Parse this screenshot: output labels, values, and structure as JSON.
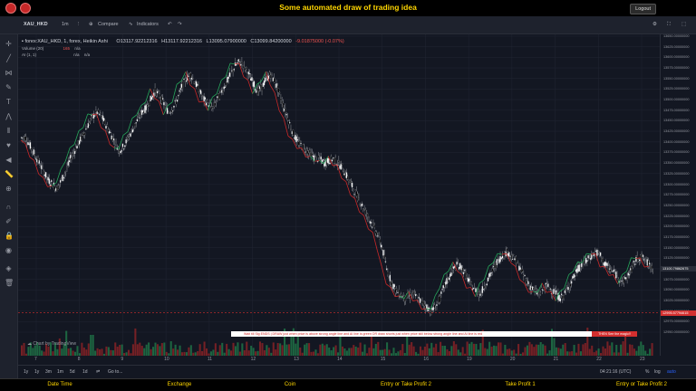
{
  "topbar": {
    "title": "Some automated draw of trading idea",
    "logout": "Logout"
  },
  "toolbar": {
    "symbol": "XAU_HKD",
    "interval": "1m",
    "compare": "Compare",
    "indicators": "Indicators"
  },
  "legend": {
    "main": "forex:XAU_HKD, 1, forex, Heikin Ashi",
    "open": "O13117.92212316",
    "high": "H13117.92212316",
    "low": "L13095.07900000",
    "close": "C13099.84200000",
    "change": "-9.01875000 (-0.07%)",
    "volume_label": "Volume (20)",
    "volume_val": "165",
    "volume_na": "n/a",
    "ai_label": "AI (1, 1)",
    "ai_na1": "n/a",
    "ai_na2": "n/a"
  },
  "banner": {
    "text": "Wait till Sig ENDS  |   DRAW just when  price is above strong angle line and AI line is green        OR      draw shorts just when price still below strong angle line and AI line is red",
    "cta": "THEN See the magic!!"
  },
  "watermark": "Chart by TradingView",
  "price_axis": {
    "ticks": [
      "13650.00000000",
      "13625.00000000",
      "13600.00000000",
      "13575.00000000",
      "13550.00000000",
      "13525.00000000",
      "13500.00000000",
      "13475.00000000",
      "13450.00000000",
      "13425.00000000",
      "13400.00000000",
      "13375.00000000",
      "13350.00000000",
      "13325.00000000",
      "13300.00000000",
      "13275.00000000",
      "13250.00000000",
      "13225.00000000",
      "13200.00000000",
      "13175.00000000",
      "13150.00000000",
      "13125.00000000",
      "13100.00000000",
      "13075.00000000",
      "13050.00000000",
      "13025.00000000",
      "13000.00000000",
      "12975.00000000",
      "12950.00000000"
    ],
    "current": "13100.79862675",
    "marker": "12995.57794615"
  },
  "time_axis": {
    "labels": [
      "7",
      "8",
      "9",
      "10",
      "11",
      "12",
      "13",
      "14",
      "15",
      "16",
      "19",
      "20",
      "21",
      "22",
      "23"
    ]
  },
  "bottom": {
    "ranges": [
      "1y",
      "1y",
      "3m",
      "1m",
      "5d",
      "1d"
    ],
    "goto": "Go to...",
    "clock": "04:21:16 (UTC)",
    "percent": "%",
    "log": "log",
    "auto": "auto"
  },
  "footer": {
    "items": [
      "Date Time",
      "Exchange",
      "Coin",
      "Entry or Take Profit 2",
      "Take Profit 1",
      "Entry or Take Profit 2"
    ]
  },
  "colors": {
    "up": "#ffffff",
    "down": "#000000",
    "ai_green": "#26a65b",
    "ai_red": "#c62828",
    "accent": "#ffd600"
  },
  "chart_data": {
    "type": "candlestick",
    "ylim": [
      12950,
      13650
    ],
    "series": [
      {
        "values": [
          13410,
          13390,
          13370,
          13350,
          13330,
          13310,
          13300,
          13290,
          13310,
          13330,
          13360,
          13380,
          13400,
          13420,
          13440,
          13460,
          13470,
          13460,
          13440,
          13420,
          13400,
          13380,
          13390,
          13410,
          13430,
          13450,
          13470,
          13480,
          13500,
          13520,
          13510,
          13490,
          13470,
          13480,
          13500,
          13530,
          13550,
          13560,
          13540,
          13520,
          13500,
          13490,
          13480,
          13500,
          13520,
          13540,
          13560,
          13580,
          13590,
          13580,
          13560,
          13540,
          13520,
          13530,
          13550,
          13560,
          13540,
          13510,
          13480,
          13450,
          13420,
          13400,
          13390,
          13380,
          13370,
          13360,
          13360,
          13350,
          13355,
          13360,
          13350,
          13340,
          13320,
          13300,
          13280,
          13260,
          13240,
          13220,
          13200,
          13180,
          13150,
          13100,
          13070,
          13050,
          13040,
          13030,
          13035,
          13040,
          13030,
          13020,
          13010,
          13000,
          13010,
          13030,
          13060,
          13080,
          13100,
          13110,
          13100,
          13080,
          13060,
          13050,
          13040,
          13060,
          13080,
          13100,
          13120,
          13130,
          13140,
          13130,
          13120,
          13100,
          13080,
          13060,
          13050,
          13040,
          13050,
          13060,
          13050,
          13040,
          13030,
          13040,
          13060,
          13080,
          13100,
          13110,
          13120,
          13130,
          13140,
          13130,
          13110,
          13100,
          13090,
          13080,
          13070,
          13080,
          13100,
          13120,
          13130,
          13120,
          13110,
          13100
        ]
      }
    ]
  }
}
